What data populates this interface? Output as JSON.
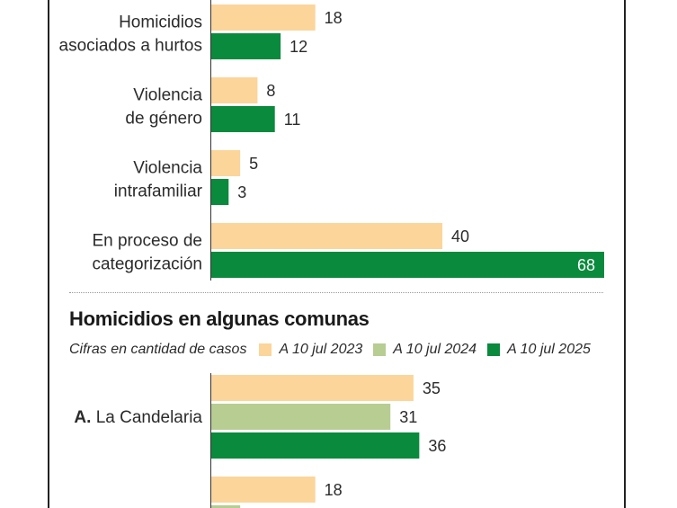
{
  "chart_data": [
    {
      "type": "bar",
      "orientation": "horizontal",
      "categories": [
        "Homicidios\nasociados a hurtos",
        "Violencia\nde género",
        "Violencia\nintrafamiliar",
        "En proceso de\ncategorización"
      ],
      "series": [
        {
          "name": "A 10 jul 2023",
          "values": [
            18,
            8,
            5,
            40
          ]
        },
        {
          "name": "A 10 jul 2025",
          "values": [
            12,
            11,
            3,
            68
          ]
        }
      ],
      "colors": [
        "#fcd59b",
        "#0a8a3c"
      ],
      "xlim": [
        0,
        68
      ],
      "grid": false
    },
    {
      "type": "bar",
      "orientation": "horizontal",
      "title": "Homicidios en algunas comunas",
      "subtitle": "Cifras en cantidad de casos",
      "categories_prefix": [
        "A.",
        ""
      ],
      "categories": [
        "La Candelaria",
        ""
      ],
      "series": [
        {
          "name": "A 10 jul 2023",
          "values": [
            35,
            18
          ]
        },
        {
          "name": "A 10 jul 2024",
          "values": [
            31,
            5
          ]
        },
        {
          "name": "A 10 jul 2025",
          "values": [
            36,
            null
          ]
        }
      ],
      "colors": [
        "#fcd59b",
        "#b7cd92",
        "#0a8a3c"
      ],
      "xlim": [
        0,
        68
      ],
      "legend_position": "top",
      "grid": false
    }
  ],
  "legend": {
    "note": "Cifras en cantidad de casos",
    "items": [
      {
        "label": "A 10 jul 2023",
        "color": "#fcd59b"
      },
      {
        "label": "A 10 jul 2024",
        "color": "#b7cd92"
      },
      {
        "label": "A 10 jul 2025",
        "color": "#0a8a3c"
      }
    ]
  },
  "section_title": "Homicidios en algunas comunas"
}
